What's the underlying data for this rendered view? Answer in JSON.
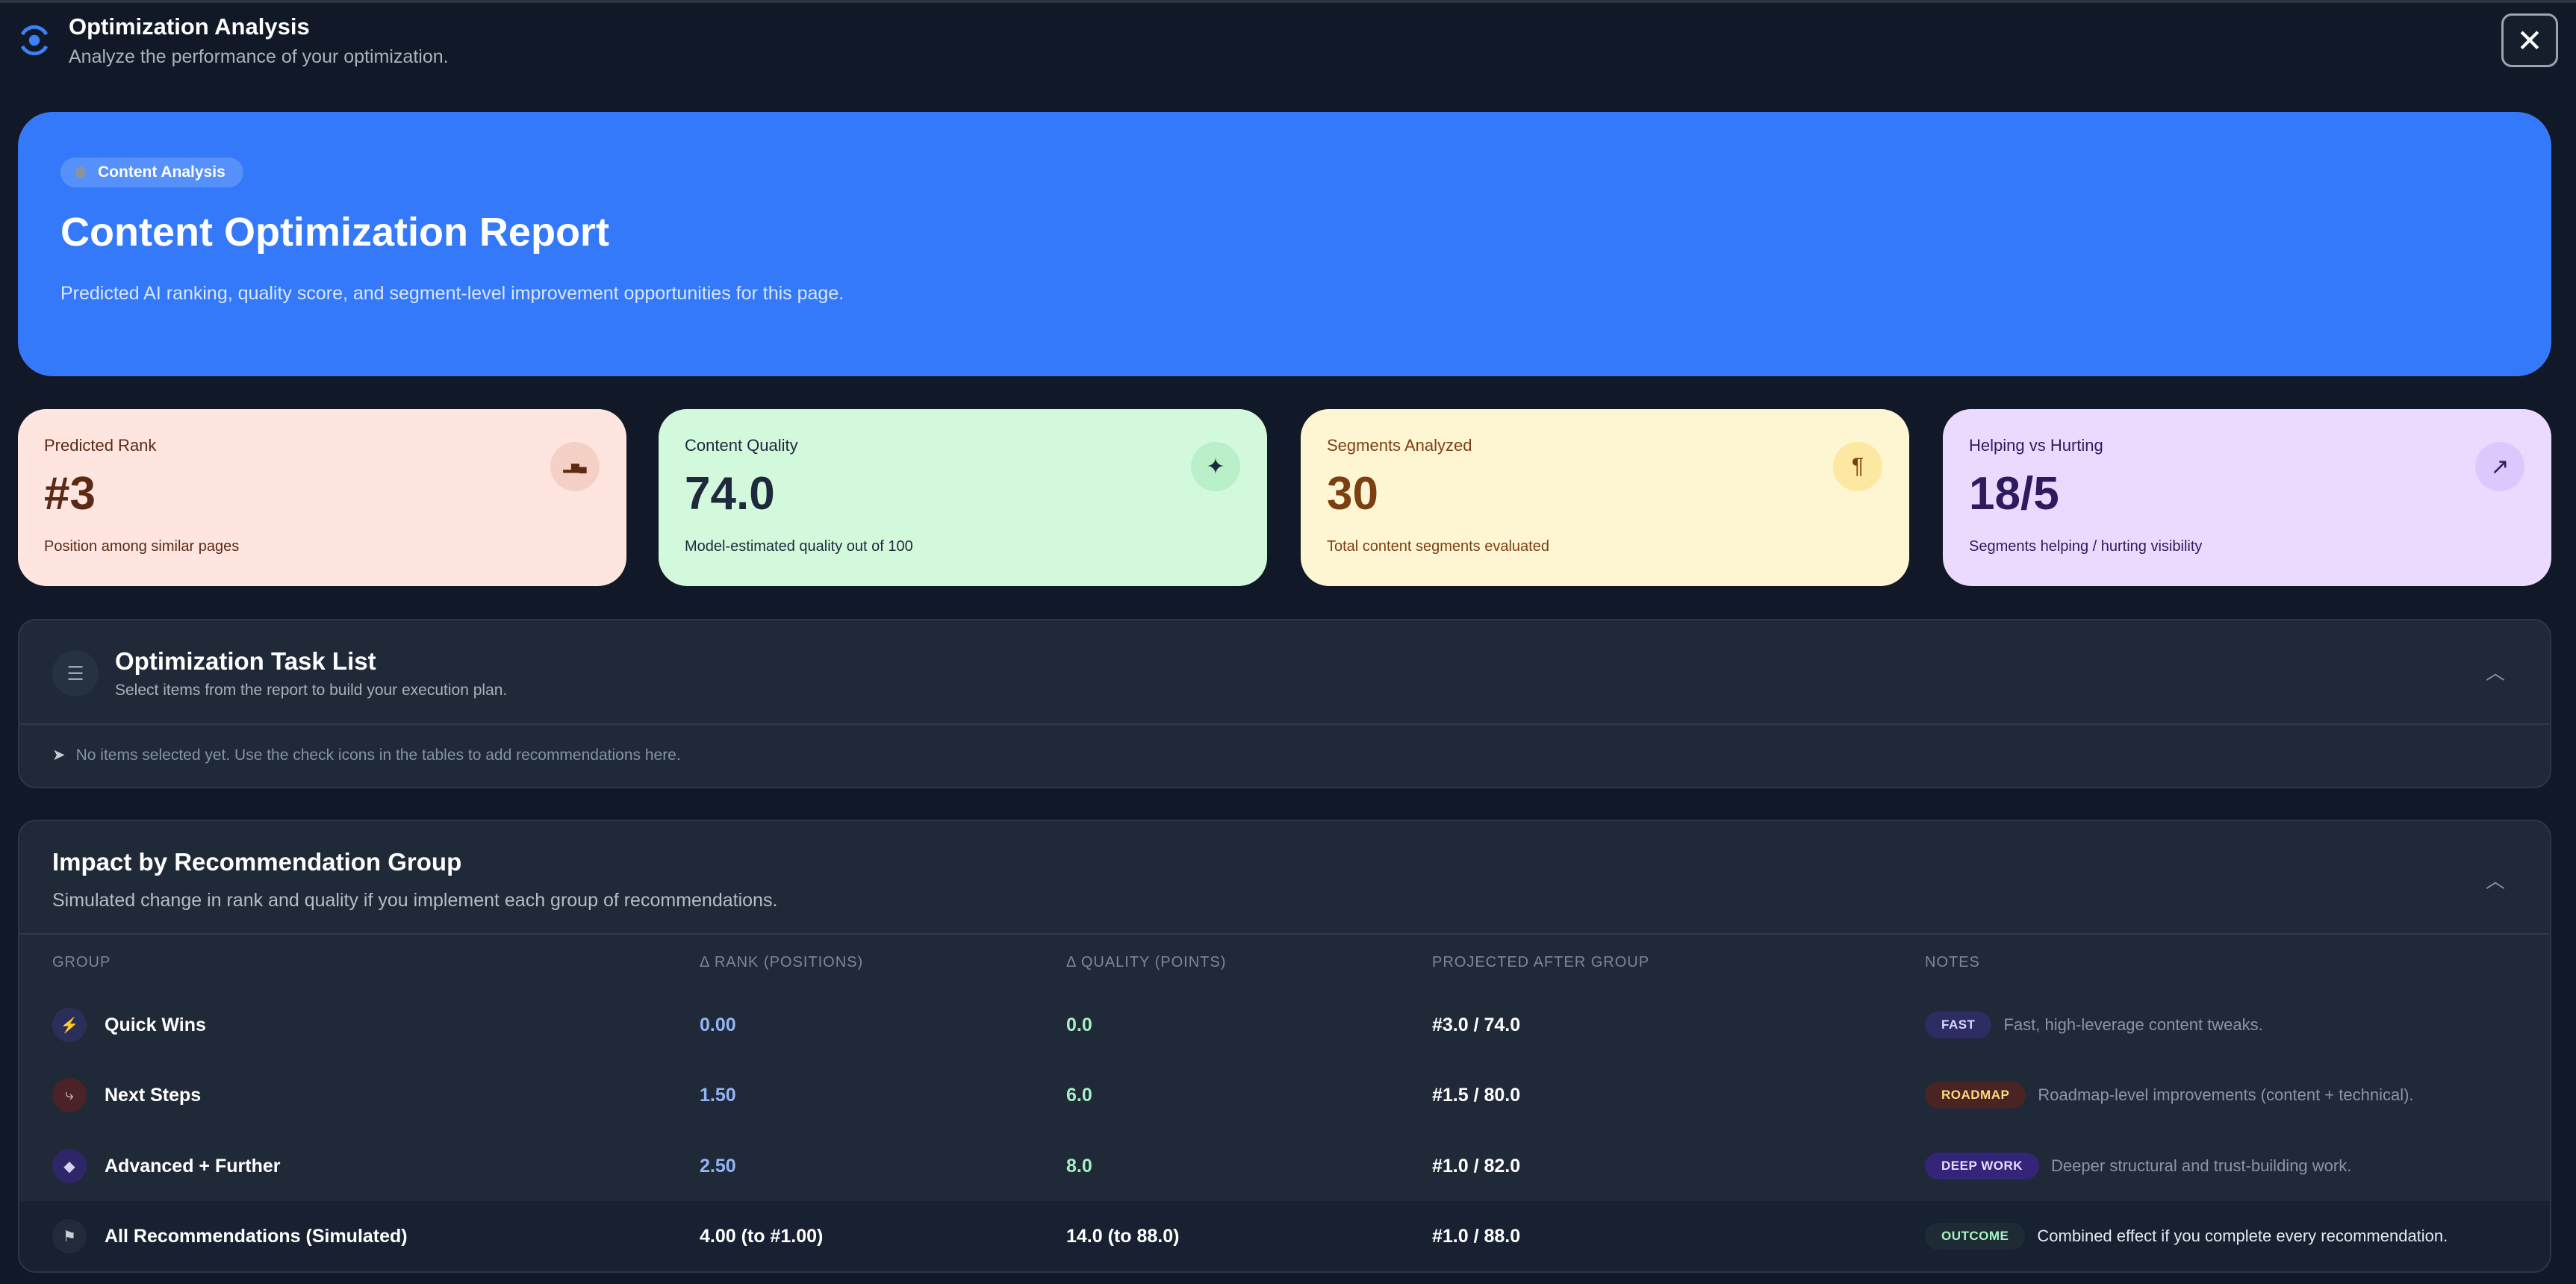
{
  "header": {
    "title": "Optimization Analysis",
    "subtitle": "Analyze the performance of your optimization.",
    "close_icon": "close-icon",
    "app_icon": "eye-icon"
  },
  "hero": {
    "badge": "Content Analysis",
    "title": "Content Optimization Report",
    "description": "Predicted AI ranking, quality score, and segment-level improvement opportunities for this page.",
    "color": "#3479f9"
  },
  "cards": [
    {
      "label": "Predicted Rank",
      "value": "#3",
      "sub": "Position among similar pages",
      "icon": "podium-icon",
      "bg": "#fee5df",
      "fg": "#5a2a14"
    },
    {
      "label": "Content Quality",
      "value": "74.0",
      "sub": "Model-estimated quality out of 100",
      "icon": "sparkles-icon",
      "bg": "#d3f9dc",
      "fg": "#1e293b"
    },
    {
      "label": "Segments Analyzed",
      "value": "30",
      "sub": "Total content segments evaluated",
      "icon": "pilcrow-icon",
      "bg": "#fef6d2",
      "fg": "#7c3f12"
    },
    {
      "label": "Helping vs Hurting",
      "value": "18/5",
      "sub": "Segments helping / hurting visibility",
      "icon": "trending-up-icon",
      "bg": "#ecdafe",
      "fg": "#2e1a5e"
    }
  ],
  "task_list": {
    "title": "Optimization Task List",
    "subtitle": "Select items from the report to build your execution plan.",
    "empty": "No items selected yet. Use the check icons in the tables to add recommendations here."
  },
  "impact": {
    "title": "Impact by Recommendation Group",
    "subtitle": "Simulated change in rank and quality if you implement each group of recommendations.",
    "columns": [
      "GROUP",
      "Δ RANK (POSITIONS)",
      "Δ QUALITY (POINTS)",
      "PROJECTED AFTER GROUP",
      "NOTES"
    ],
    "rows": [
      {
        "group": "Quick Wins",
        "rank": "0.00",
        "quality": "0.0",
        "projected": "#3.0 / 74.0",
        "tag": "FAST",
        "note": "Fast, high-leverage content tweaks.",
        "icon": "lightning-icon"
      },
      {
        "group": "Next Steps",
        "rank": "1.50",
        "quality": "6.0",
        "projected": "#1.5 / 80.0",
        "tag": "ROADMAP",
        "note": "Roadmap-level improvements (content + technical).",
        "icon": "route-icon"
      },
      {
        "group": "Advanced + Further",
        "rank": "2.50",
        "quality": "8.0",
        "projected": "#1.0 / 82.0",
        "tag": "DEEP WORK",
        "note": "Deeper structural and trust-building work.",
        "icon": "layers-icon"
      },
      {
        "group": "All Recommendations (Simulated)",
        "rank": "4.00 (to #1.00)",
        "quality": "14.0 (to 88.0)",
        "projected": "#1.0 / 88.0",
        "tag": "OUTCOME",
        "note": "Combined effect if you complete every recommendation.",
        "icon": "flag-icon"
      }
    ]
  }
}
